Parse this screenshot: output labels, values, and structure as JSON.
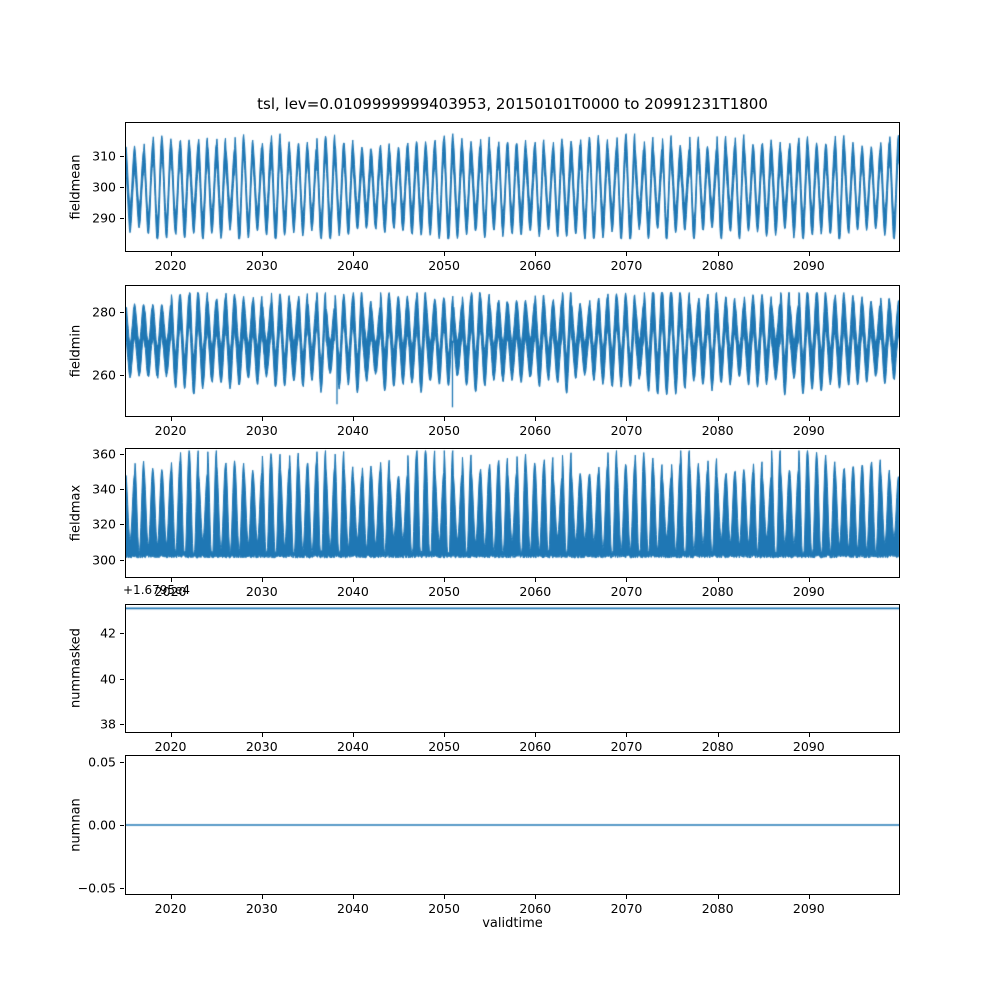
{
  "title": "tsl, lev=0.0109999999403953, 20150101T0000 to 20991231T1800",
  "xlabel": "validtime",
  "line_color": "#1f77b4",
  "x_axis": {
    "range": [
      2015,
      2100
    ],
    "ticks": [
      2020,
      2030,
      2040,
      2050,
      2060,
      2070,
      2080,
      2090
    ],
    "labels": [
      "2020",
      "2030",
      "2040",
      "2050",
      "2060",
      "2070",
      "2080",
      "2090"
    ]
  },
  "chart_data": [
    {
      "type": "line",
      "name": "fieldmean",
      "ylabel": "fieldmean",
      "yticks": [
        290,
        300,
        310
      ],
      "ytick_labels": [
        "290",
        "300",
        "310"
      ],
      "ylim": [
        279,
        321
      ],
      "signal": {
        "kind": "seasonal-band",
        "description": "dense annual oscillation, 4x-daily samples 2015-2099",
        "center": 299.5,
        "seasonal_amplitude": 11.5,
        "amplitude_jitter": 2.5,
        "band_halfwidth": 3.5,
        "band_jitter": 1.2,
        "min": 283,
        "max": 317.5
      }
    },
    {
      "type": "line",
      "name": "fieldmin",
      "ylabel": "fieldmin",
      "yticks": [
        260,
        280
      ],
      "ytick_labels": [
        "260",
        "280"
      ],
      "ylim": [
        246.7,
        288.6
      ],
      "signal": {
        "kind": "seasonal-band",
        "description": "dense annual oscillation with occasional cold spikes",
        "center": 271,
        "seasonal_amplitude": 8.5,
        "amplitude_jitter": 2.8,
        "band_halfwidth": 5,
        "band_jitter": 1.6,
        "min": 250,
        "max": 286.5,
        "spikes": [
          {
            "x": 2038.2,
            "y": 250.5
          },
          {
            "x": 2050.9,
            "y": 249.5
          }
        ]
      }
    },
    {
      "type": "line",
      "name": "fieldmax",
      "ylabel": "fieldmax",
      "yticks": [
        300,
        320,
        340,
        360
      ],
      "ytick_labels": [
        "300",
        "320",
        "340",
        "360"
      ],
      "ylim": [
        289.6,
        363.4
      ],
      "signal": {
        "kind": "baseline-peaks",
        "description": "flat baseline near 300 with annual peaks to ~360",
        "baseline": 300.5,
        "baseline_noise": 1.8,
        "peak_center": 330,
        "peak_amplitude": 26,
        "peak_jitter": 9,
        "upper_min": 303,
        "min": 300,
        "max": 362.5
      }
    },
    {
      "type": "line",
      "name": "nummasked",
      "ylabel": "nummasked",
      "yticks": [
        38,
        40,
        42
      ],
      "ytick_labels": [
        "38",
        "40",
        "42"
      ],
      "ylim": [
        37.6,
        43.3
      ],
      "offset_text": "+1.6795e4",
      "signal": {
        "kind": "constant",
        "description": "constant count line at top of axes",
        "value": 43.15
      }
    },
    {
      "type": "line",
      "name": "numnan",
      "ylabel": "numnan",
      "yticks": [
        -0.05,
        0,
        0.05
      ],
      "ytick_labels": [
        "−0.05",
        "0.00",
        "0.05"
      ],
      "ylim": [
        -0.0555,
        0.0555
      ],
      "signal": {
        "kind": "constant",
        "description": "constant zero line",
        "value": 0
      }
    }
  ]
}
